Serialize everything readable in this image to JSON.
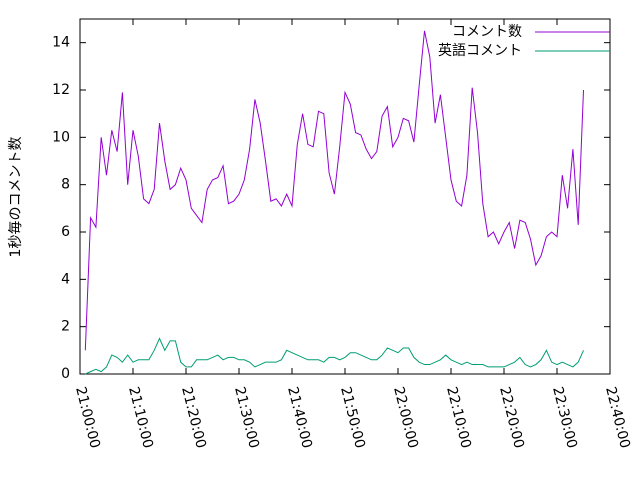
{
  "chart_data": {
    "type": "line",
    "ylabel": "1秒毎のコメント数",
    "x": [
      "21:01:00",
      "21:02:00",
      "21:03:00",
      "21:04:00",
      "21:05:00",
      "21:06:00",
      "21:07:00",
      "21:08:00",
      "21:09:00",
      "21:10:00",
      "21:11:00",
      "21:12:00",
      "21:13:00",
      "21:14:00",
      "21:15:00",
      "21:16:00",
      "21:17:00",
      "21:18:00",
      "21:19:00",
      "21:20:00",
      "21:21:00",
      "21:22:00",
      "21:23:00",
      "21:24:00",
      "21:25:00",
      "21:26:00",
      "21:27:00",
      "21:28:00",
      "21:29:00",
      "21:30:00",
      "21:31:00",
      "21:32:00",
      "21:33:00",
      "21:34:00",
      "21:35:00",
      "21:36:00",
      "21:37:00",
      "21:38:00",
      "21:39:00",
      "21:40:00",
      "21:41:00",
      "21:42:00",
      "21:43:00",
      "21:44:00",
      "21:45:00",
      "21:46:00",
      "21:47:00",
      "21:48:00",
      "21:49:00",
      "21:50:00",
      "21:51:00",
      "21:52:00",
      "21:53:00",
      "21:54:00",
      "21:55:00",
      "21:56:00",
      "21:57:00",
      "21:58:00",
      "21:59:00",
      "22:00:00",
      "22:01:00",
      "22:02:00",
      "22:03:00",
      "22:04:00",
      "22:05:00",
      "22:06:00",
      "22:07:00",
      "22:08:00",
      "22:09:00",
      "22:10:00",
      "22:11:00",
      "22:12:00",
      "22:13:00",
      "22:14:00",
      "22:15:00",
      "22:16:00",
      "22:17:00",
      "22:18:00",
      "22:19:00",
      "22:20:00",
      "22:21:00",
      "22:22:00",
      "22:23:00",
      "22:24:00",
      "22:25:00",
      "22:26:00",
      "22:27:00",
      "22:28:00",
      "22:29:00",
      "22:30:00",
      "22:31:00",
      "22:32:00",
      "22:33:00",
      "22:34:00",
      "22:35:00"
    ],
    "series": [
      {
        "name": "コメント数",
        "color": "#9400d3",
        "values": [
          1.0,
          6.6,
          6.2,
          10.0,
          8.4,
          10.3,
          9.4,
          11.9,
          8.0,
          10.3,
          9.2,
          7.4,
          7.2,
          7.8,
          10.6,
          9.0,
          7.8,
          8.0,
          8.7,
          8.2,
          7.0,
          6.7,
          6.4,
          7.8,
          8.2,
          8.3,
          8.8,
          7.2,
          7.3,
          7.6,
          8.2,
          9.5,
          11.6,
          10.6,
          9.0,
          7.3,
          7.4,
          7.1,
          7.6,
          7.1,
          9.7,
          11.0,
          9.7,
          9.6,
          11.1,
          11.0,
          8.5,
          7.6,
          9.6,
          11.9,
          11.4,
          10.2,
          10.1,
          9.5,
          9.1,
          9.4,
          10.9,
          11.3,
          9.6,
          10.0,
          10.8,
          10.7,
          9.8,
          12.2,
          14.5,
          13.4,
          10.6,
          11.8,
          10.0,
          8.2,
          7.3,
          7.1,
          8.4,
          12.1,
          10.2,
          7.2,
          5.8,
          6.0,
          5.5,
          6.0,
          6.4,
          5.3,
          6.5,
          6.4,
          5.7,
          4.6,
          5.0,
          5.8,
          6.0,
          5.8,
          8.4,
          7.0,
          9.5,
          6.3,
          12.0
        ]
      },
      {
        "name": "英語コメント",
        "color": "#009e73",
        "values": [
          0.0,
          0.1,
          0.2,
          0.1,
          0.3,
          0.8,
          0.7,
          0.5,
          0.8,
          0.5,
          0.6,
          0.6,
          0.6,
          1.0,
          1.5,
          1.0,
          1.4,
          1.4,
          0.5,
          0.3,
          0.3,
          0.6,
          0.6,
          0.6,
          0.7,
          0.8,
          0.6,
          0.7,
          0.7,
          0.6,
          0.6,
          0.5,
          0.3,
          0.4,
          0.5,
          0.5,
          0.5,
          0.6,
          1.0,
          0.9,
          0.8,
          0.7,
          0.6,
          0.6,
          0.6,
          0.5,
          0.7,
          0.7,
          0.6,
          0.7,
          0.9,
          0.9,
          0.8,
          0.7,
          0.6,
          0.6,
          0.8,
          1.1,
          1.0,
          0.9,
          1.1,
          1.1,
          0.7,
          0.5,
          0.4,
          0.4,
          0.5,
          0.6,
          0.8,
          0.6,
          0.5,
          0.4,
          0.5,
          0.4,
          0.4,
          0.4,
          0.3,
          0.3,
          0.3,
          0.3,
          0.4,
          0.5,
          0.7,
          0.4,
          0.3,
          0.4,
          0.6,
          1.0,
          0.5,
          0.4,
          0.5,
          0.4,
          0.3,
          0.5,
          1.0
        ]
      }
    ],
    "xlim": [
      "21:00:00",
      "22:40:00"
    ],
    "xticks": [
      "21:00:00",
      "21:10:00",
      "21:20:00",
      "21:30:00",
      "21:40:00",
      "21:50:00",
      "22:00:00",
      "22:10:00",
      "22:20:00",
      "22:30:00",
      "22:40:00"
    ],
    "ylim": [
      0,
      15
    ],
    "yticks": [
      0,
      2,
      4,
      6,
      8,
      10,
      12,
      14
    ],
    "legend": "top-right"
  }
}
